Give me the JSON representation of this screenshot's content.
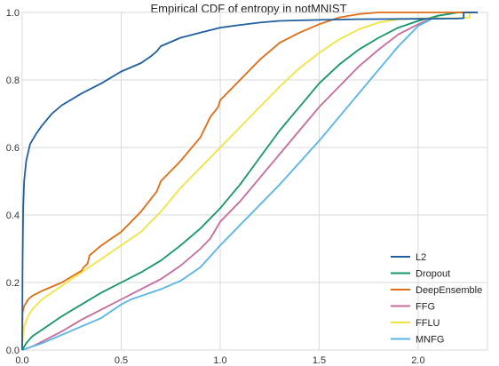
{
  "chart_data": {
    "type": "line",
    "title": "Empirical CDF of entropy in notMNIST",
    "xlim": [
      0,
      2.35
    ],
    "ylim": [
      0,
      1.0
    ],
    "x_ticks": [
      0.0,
      0.5,
      1.0,
      1.5,
      2.0
    ],
    "x_tick_labels": [
      "0.0",
      "0.5",
      "1.0",
      "1.5",
      "2.0"
    ],
    "y_ticks": [
      0.0,
      0.2,
      0.4,
      0.6,
      0.8,
      1.0
    ],
    "y_tick_labels": [
      "0.0",
      "0.2",
      "0.4",
      "0.6",
      "0.8",
      "1.0"
    ],
    "grid": true,
    "legend_position": "lower-right",
    "series": [
      {
        "name": "L2",
        "color": "#1f5fa0",
        "x": [
          0.0,
          0.002,
          0.005,
          0.01,
          0.02,
          0.04,
          0.07,
          0.1,
          0.15,
          0.2,
          0.3,
          0.4,
          0.5,
          0.6,
          0.65,
          0.68,
          0.7,
          0.8,
          0.9,
          1.0,
          1.1,
          1.2,
          1.3,
          1.5,
          1.7,
          2.0,
          2.2,
          2.23,
          2.23,
          2.3
        ],
        "y": [
          0.0,
          0.25,
          0.42,
          0.5,
          0.56,
          0.61,
          0.64,
          0.665,
          0.7,
          0.725,
          0.76,
          0.79,
          0.825,
          0.85,
          0.87,
          0.885,
          0.9,
          0.925,
          0.94,
          0.955,
          0.963,
          0.97,
          0.975,
          0.978,
          0.98,
          0.981,
          0.982,
          0.983,
          1.0,
          1.0
        ]
      },
      {
        "name": "Dropout",
        "color": "#13966c",
        "x": [
          0.0,
          0.02,
          0.05,
          0.1,
          0.2,
          0.3,
          0.4,
          0.5,
          0.6,
          0.7,
          0.8,
          0.9,
          1.0,
          1.1,
          1.2,
          1.3,
          1.4,
          1.5,
          1.6,
          1.7,
          1.8,
          1.9,
          2.0,
          2.1,
          2.2,
          2.3
        ],
        "y": [
          0.0,
          0.02,
          0.04,
          0.06,
          0.1,
          0.135,
          0.17,
          0.2,
          0.23,
          0.265,
          0.31,
          0.36,
          0.42,
          0.49,
          0.57,
          0.65,
          0.72,
          0.79,
          0.845,
          0.89,
          0.925,
          0.955,
          0.975,
          0.99,
          1.0,
          1.0
        ]
      },
      {
        "name": "DeepEnsemble",
        "color": "#e06c13",
        "x": [
          0.0,
          0.002,
          0.01,
          0.03,
          0.05,
          0.1,
          0.2,
          0.3,
          0.31,
          0.33,
          0.34,
          0.4,
          0.5,
          0.6,
          0.68,
          0.7,
          0.8,
          0.9,
          0.95,
          0.99,
          1.0,
          1.1,
          1.2,
          1.3,
          1.4,
          1.5,
          1.6,
          1.7,
          1.8,
          2.0,
          2.3
        ],
        "y": [
          0.0,
          0.11,
          0.13,
          0.15,
          0.16,
          0.175,
          0.2,
          0.235,
          0.245,
          0.255,
          0.28,
          0.31,
          0.35,
          0.41,
          0.47,
          0.5,
          0.56,
          0.63,
          0.69,
          0.72,
          0.74,
          0.8,
          0.86,
          0.91,
          0.94,
          0.965,
          0.985,
          0.995,
          1.0,
          1.0,
          1.0
        ]
      },
      {
        "name": "FFG",
        "color": "#c8699c",
        "x": [
          0.0,
          0.05,
          0.1,
          0.2,
          0.3,
          0.4,
          0.5,
          0.6,
          0.7,
          0.8,
          0.9,
          0.95,
          1.0,
          1.1,
          1.2,
          1.3,
          1.4,
          1.5,
          1.6,
          1.7,
          1.8,
          1.9,
          2.0,
          2.1,
          2.2,
          2.3
        ],
        "y": [
          0.0,
          0.01,
          0.025,
          0.055,
          0.09,
          0.12,
          0.15,
          0.18,
          0.21,
          0.25,
          0.3,
          0.33,
          0.38,
          0.44,
          0.51,
          0.58,
          0.65,
          0.72,
          0.78,
          0.84,
          0.89,
          0.935,
          0.965,
          0.99,
          1.0,
          1.0
        ]
      },
      {
        "name": "FFLU",
        "color": "#f0e442",
        "x": [
          0.0,
          0.003,
          0.01,
          0.03,
          0.05,
          0.1,
          0.2,
          0.3,
          0.4,
          0.5,
          0.6,
          0.7,
          0.8,
          0.9,
          1.0,
          1.1,
          1.2,
          1.3,
          1.4,
          1.5,
          1.6,
          1.7,
          1.8,
          1.9,
          2.0,
          2.1,
          2.2,
          2.26,
          2.26
        ],
        "y": [
          0.0,
          0.04,
          0.07,
          0.1,
          0.12,
          0.15,
          0.19,
          0.23,
          0.27,
          0.31,
          0.35,
          0.41,
          0.48,
          0.54,
          0.6,
          0.66,
          0.72,
          0.78,
          0.835,
          0.88,
          0.92,
          0.95,
          0.97,
          0.98,
          0.982,
          0.983,
          0.983,
          0.985,
          1.0
        ]
      },
      {
        "name": "MNFG",
        "color": "#56b4e9",
        "x": [
          0.0,
          0.05,
          0.1,
          0.2,
          0.3,
          0.4,
          0.45,
          0.5,
          0.55,
          0.6,
          0.7,
          0.8,
          0.9,
          1.0,
          1.1,
          1.2,
          1.3,
          1.4,
          1.5,
          1.6,
          1.7,
          1.8,
          1.9,
          2.0,
          2.1,
          2.2,
          2.3
        ],
        "y": [
          0.0,
          0.01,
          0.02,
          0.045,
          0.07,
          0.095,
          0.115,
          0.135,
          0.15,
          0.16,
          0.18,
          0.205,
          0.245,
          0.31,
          0.37,
          0.43,
          0.49,
          0.555,
          0.62,
          0.69,
          0.76,
          0.83,
          0.9,
          0.96,
          0.99,
          1.0,
          1.0
        ]
      }
    ]
  }
}
